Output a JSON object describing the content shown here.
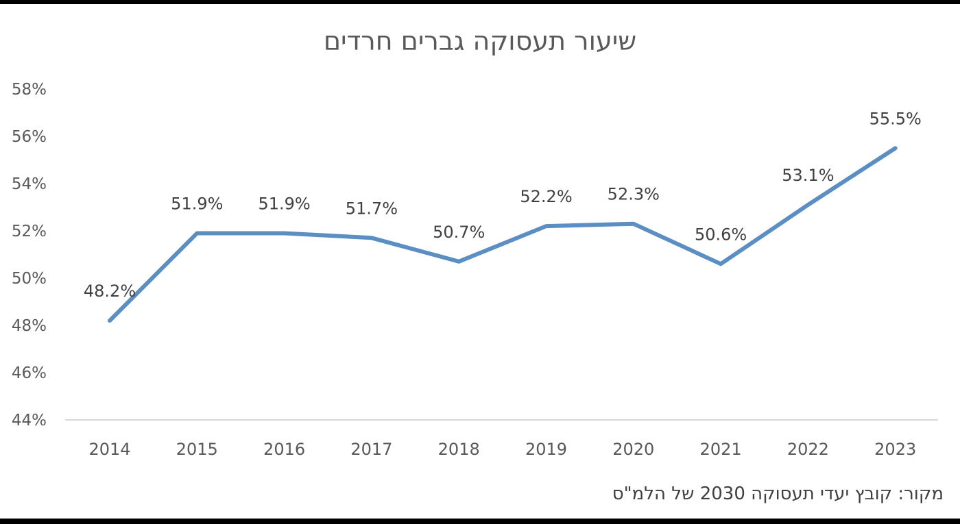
{
  "title": "שיעור תעסוקה גברים חרדים",
  "source": "מקור: קובץ יעדי תעסוקה 2030 של הלמ\"ס",
  "chart_data": {
    "type": "line",
    "title": "שיעור תעסוקה גברים חרדים",
    "categories": [
      "2014",
      "2015",
      "2016",
      "2017",
      "2018",
      "2019",
      "2020",
      "2021",
      "2022",
      "2023"
    ],
    "values": [
      48.2,
      51.9,
      51.9,
      51.7,
      50.7,
      52.2,
      52.3,
      50.6,
      53.1,
      55.5
    ],
    "data_labels": [
      "48.2%",
      "51.9%",
      "51.9%",
      "51.7%",
      "50.7%",
      "52.2%",
      "52.3%",
      "50.6%",
      "53.1%",
      "55.5%"
    ],
    "ylim": [
      44,
      58
    ],
    "yticks": [
      58,
      56,
      54,
      52,
      50,
      48,
      46,
      44
    ],
    "ytick_labels": [
      "58%",
      "56%",
      "54%",
      "52%",
      "50%",
      "48%",
      "46%",
      "44%"
    ],
    "grid": false,
    "legend": "none",
    "line_color": "#5b8fc4",
    "axis_color": "#d9d9d9"
  }
}
